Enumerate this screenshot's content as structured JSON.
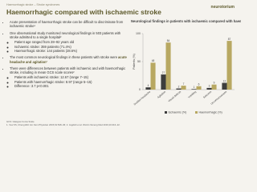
{
  "header": {
    "breadcrumb": "Haemorrhagic stroke – Stroke syndromes",
    "title": "Haemorrhagic compared with ischaemic stroke",
    "logo": "neurotorium"
  },
  "bullets": [
    {
      "text": "Acute presentation of haemorrhagic stroke can be difficult to discriminate from ischaemic stroke¹",
      "sub": []
    },
    {
      "text": "One observational study monitored neurological findings in 503 patients with stroke admitted to a single hospital²",
      "sub": [
        "Patient age ranged from 28–92 years old",
        "Ischaemic stroke: 359 patients (71.4%)",
        "Haemorrhagic stroke: 144 patients (28.6%)"
      ]
    },
    {
      "text": "The most common neurological findings in these patients with stroke were",
      "bold": "acute headache and agitation²",
      "sub": []
    },
    {
      "text": "There were differences between patients with ischaemic and with haemorrhagic stroke, including in mean GCS scale scores²",
      "sub": [
        "Patients with ischaemic stroke: 12.67 (range 7–15)",
        "Patients with haemorrhagic stroke: 8.97 (range 5–15)",
        "Difference: 3.7 p<0.001"
      ]
    }
  ],
  "footer": {
    "abbrev": "GCS: Glasgow Coma Scale",
    "refs": "1. Yew KS, Cheng EM. Am Fam Physician 2015;91:528–36; 2. Jagdish et al. World J Emerg Med 2019;10:216–22."
  },
  "chart_data": {
    "type": "bar",
    "title": "Neurological findings in patients with ischaemic compared with haemorrhagic stroke",
    "ylabel": "Patients (%)",
    "categories": [
      "Sudden headache",
      "Agitation",
      "Visual defects",
      "Vomiting",
      "Seizures",
      "Unconsciousness"
    ],
    "series": [
      {
        "name": "Ischaemic (%)",
        "color": "#3d3d3d",
        "values": [
          4,
          27,
          2,
          1,
          3,
          12
        ]
      },
      {
        "name": "Haemorrhagic (%)",
        "color": "#b8a862",
        "values": [
          48,
          84,
          7,
          6,
          9,
          87
        ]
      }
    ],
    "ylim": [
      0,
      100
    ],
    "yticks": [
      0,
      50,
      100
    ],
    "legend": "bottom"
  }
}
